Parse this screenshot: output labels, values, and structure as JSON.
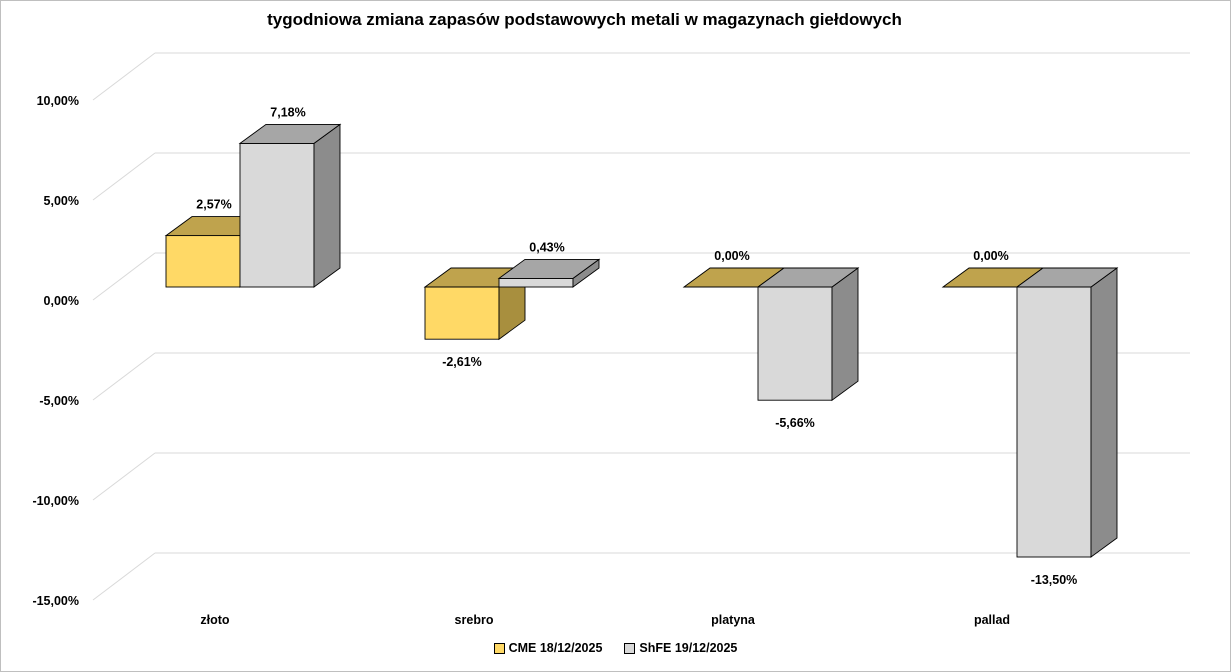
{
  "chart_data": {
    "type": "bar",
    "title": "tygodniowa zmiana zapasów podstawowych metali w magazynach giełdowych",
    "categories": [
      "złoto",
      "srebro",
      "platyna",
      "pallad"
    ],
    "series": [
      {
        "name": "CME 18/12/2025",
        "values": [
          2.57,
          -2.61,
          0.0,
          0.0
        ],
        "labels": [
          "2,57%",
          "-2,61%",
          "0,00%",
          "0,00%"
        ],
        "color": "#FFD966",
        "top_color": "#BFA34D",
        "side_color": "#A88F3E"
      },
      {
        "name": "ShFE 19/12/2025",
        "values": [
          7.18,
          0.43,
          -5.66,
          -13.5
        ],
        "labels": [
          "7,18%",
          "0,43%",
          "-5,66%",
          "-13,50%"
        ],
        "color": "#D9D9D9",
        "top_color": "#A6A6A6",
        "side_color": "#8C8C8C"
      }
    ],
    "y_ticks": [
      10,
      5,
      0,
      -5,
      -10,
      -15
    ],
    "y_tick_labels": [
      "10,00%",
      "5,00%",
      "0,00%",
      "-5,00%",
      "-10,00%",
      "-15,00%"
    ],
    "ylim": [
      -15,
      10
    ],
    "xlabel": "",
    "ylabel": "",
    "grid": true,
    "legend_position": "bottom"
  }
}
